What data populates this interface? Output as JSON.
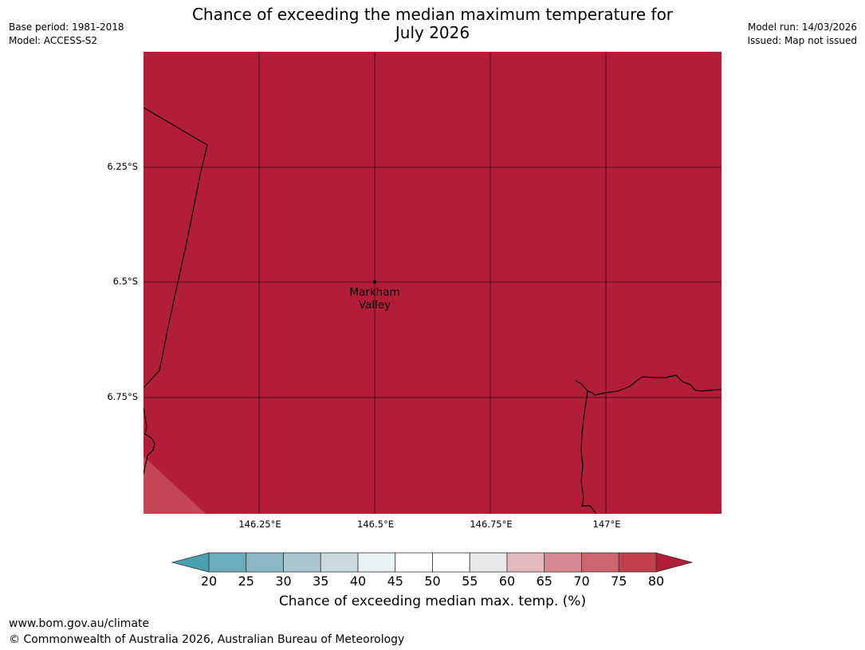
{
  "title_line1": "Chance of exceeding the median maximum temperature for",
  "title_line2": "July 2026",
  "meta_left": [
    "Base period: 1981-2018",
    "Model: ACCESS-S2"
  ],
  "meta_right": [
    "Model run: 14/03/2026",
    "Issued: Map not issued"
  ],
  "map": {
    "fill_color": "#b21e38",
    "lower_left_fill": "#c24655",
    "lat_labels": [
      "6.25°S",
      "6.5°S",
      "6.75°S"
    ],
    "lon_labels": [
      "146.25°E",
      "146.5°E",
      "146.75°E",
      "147°E"
    ],
    "place": {
      "name_line1": "Markham",
      "name_line2": "Valley"
    }
  },
  "colorbar": {
    "ticks": [
      "20",
      "25",
      "30",
      "35",
      "40",
      "45",
      "50",
      "55",
      "60",
      "65",
      "70",
      "75",
      "80"
    ],
    "colors": [
      "#4a9fb1",
      "#6cadbd",
      "#8bb7c4",
      "#a9c6cc",
      "#c9dbde",
      "#e9f1f2",
      "#ffffff",
      "#ffffff",
      "#e8e8e8",
      "#e3b9bd",
      "#d88a93",
      "#cd6470",
      "#c0404e",
      "#b01d37"
    ],
    "label": "Chance of exceeding median max. temp. (%)"
  },
  "footer": {
    "url": "www.bom.gov.au/climate",
    "copyright": "© Commonwealth of Australia 2026, Australian Bureau of Meteorology"
  }
}
